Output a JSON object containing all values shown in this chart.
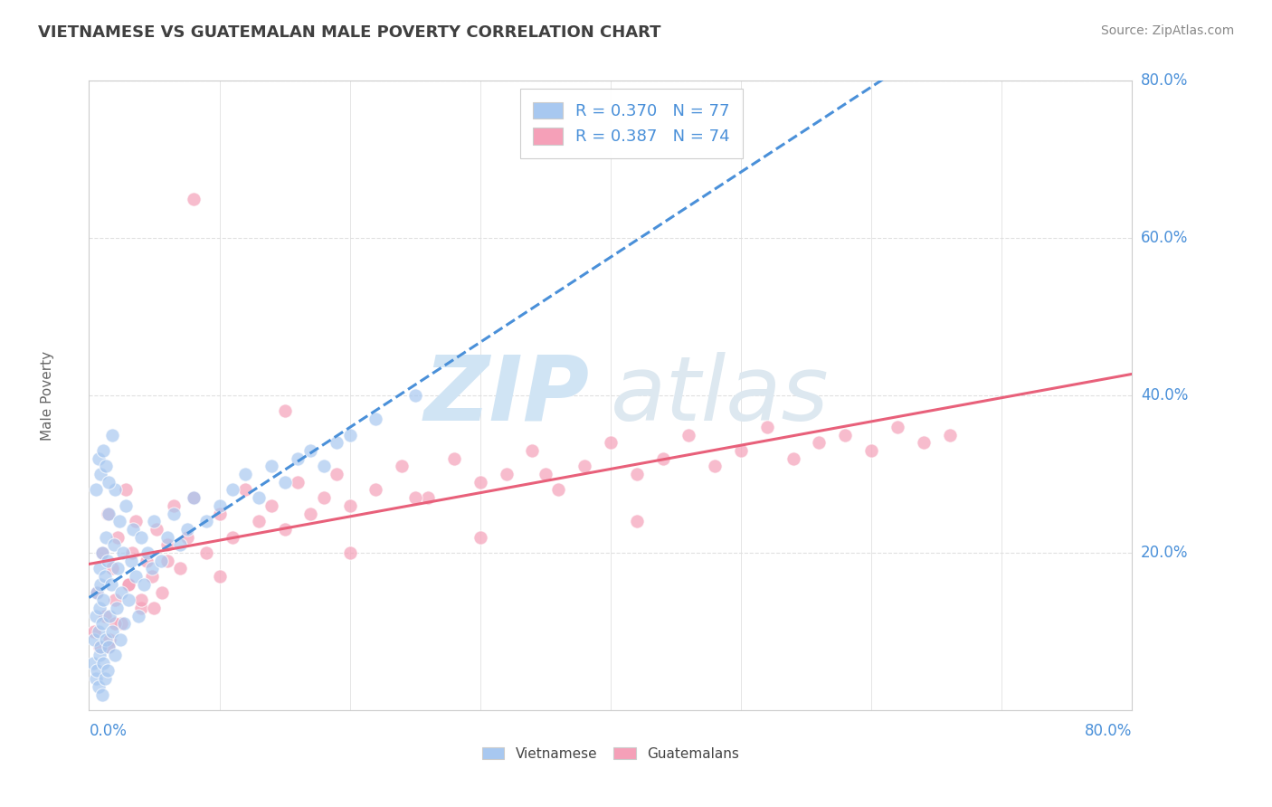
{
  "title": "VIETNAMESE VS GUATEMALAN MALE POVERTY CORRELATION CHART",
  "source": "Source: ZipAtlas.com",
  "ylabel": "Male Poverty",
  "xmin": 0.0,
  "xmax": 0.8,
  "ymin": 0.0,
  "ymax": 0.8,
  "right_yticks": [
    0.0,
    0.2,
    0.4,
    0.6,
    0.8
  ],
  "right_ytick_labels": [
    "",
    "20.0%",
    "40.0%",
    "60.0%",
    "80.0%"
  ],
  "legend_r1": "R = 0.370",
  "legend_n1": "N = 77",
  "legend_r2": "R = 0.387",
  "legend_n2": "N = 74",
  "label_viet": "Vietnamese",
  "label_guat": "Guatemalans",
  "viet_color": "#a8c8f0",
  "guat_color": "#f5a0b8",
  "viet_line_color": "#4a90d9",
  "guat_line_color": "#e8607a",
  "watermark_zip": "ZIP",
  "watermark_atlas": "atlas",
  "watermark_color": "#d0e4f4",
  "background_color": "#ffffff",
  "title_color": "#404040",
  "right_label_color": "#4a90d9",
  "grid_color": "#e0e0e0",
  "viet_x": [
    0.003,
    0.004,
    0.005,
    0.005,
    0.006,
    0.006,
    0.007,
    0.007,
    0.008,
    0.008,
    0.008,
    0.009,
    0.009,
    0.01,
    0.01,
    0.01,
    0.011,
    0.011,
    0.012,
    0.012,
    0.013,
    0.013,
    0.014,
    0.014,
    0.015,
    0.015,
    0.016,
    0.017,
    0.018,
    0.019,
    0.02,
    0.02,
    0.021,
    0.022,
    0.023,
    0.024,
    0.025,
    0.026,
    0.027,
    0.028,
    0.03,
    0.032,
    0.034,
    0.036,
    0.038,
    0.04,
    0.042,
    0.045,
    0.048,
    0.05,
    0.055,
    0.06,
    0.065,
    0.07,
    0.075,
    0.08,
    0.09,
    0.1,
    0.11,
    0.12,
    0.13,
    0.14,
    0.15,
    0.16,
    0.17,
    0.18,
    0.19,
    0.2,
    0.22,
    0.25,
    0.005,
    0.007,
    0.009,
    0.011,
    0.013,
    0.015,
    0.018
  ],
  "viet_y": [
    0.06,
    0.09,
    0.04,
    0.12,
    0.05,
    0.15,
    0.03,
    0.1,
    0.07,
    0.13,
    0.18,
    0.08,
    0.16,
    0.02,
    0.11,
    0.2,
    0.06,
    0.14,
    0.04,
    0.17,
    0.09,
    0.22,
    0.05,
    0.19,
    0.08,
    0.25,
    0.12,
    0.16,
    0.1,
    0.21,
    0.07,
    0.28,
    0.13,
    0.18,
    0.24,
    0.09,
    0.15,
    0.2,
    0.11,
    0.26,
    0.14,
    0.19,
    0.23,
    0.17,
    0.12,
    0.22,
    0.16,
    0.2,
    0.18,
    0.24,
    0.19,
    0.22,
    0.25,
    0.21,
    0.23,
    0.27,
    0.24,
    0.26,
    0.28,
    0.3,
    0.27,
    0.31,
    0.29,
    0.32,
    0.33,
    0.31,
    0.34,
    0.35,
    0.37,
    0.4,
    0.28,
    0.32,
    0.3,
    0.33,
    0.31,
    0.29,
    0.35
  ],
  "guat_x": [
    0.004,
    0.006,
    0.008,
    0.01,
    0.012,
    0.014,
    0.016,
    0.018,
    0.02,
    0.022,
    0.025,
    0.028,
    0.03,
    0.033,
    0.036,
    0.04,
    0.044,
    0.048,
    0.052,
    0.056,
    0.06,
    0.065,
    0.07,
    0.075,
    0.08,
    0.09,
    0.1,
    0.11,
    0.12,
    0.13,
    0.14,
    0.15,
    0.16,
    0.17,
    0.18,
    0.19,
    0.2,
    0.22,
    0.24,
    0.26,
    0.28,
    0.3,
    0.32,
    0.34,
    0.36,
    0.38,
    0.4,
    0.42,
    0.44,
    0.46,
    0.48,
    0.5,
    0.52,
    0.54,
    0.56,
    0.58,
    0.6,
    0.62,
    0.64,
    0.66,
    0.35,
    0.25,
    0.15,
    0.42,
    0.3,
    0.2,
    0.1,
    0.05,
    0.03,
    0.02,
    0.08,
    0.06,
    0.04,
    0.015
  ],
  "guat_y": [
    0.1,
    0.15,
    0.08,
    0.2,
    0.12,
    0.25,
    0.09,
    0.18,
    0.14,
    0.22,
    0.11,
    0.28,
    0.16,
    0.2,
    0.24,
    0.13,
    0.19,
    0.17,
    0.23,
    0.15,
    0.21,
    0.26,
    0.18,
    0.22,
    0.27,
    0.2,
    0.25,
    0.22,
    0.28,
    0.24,
    0.26,
    0.23,
    0.29,
    0.25,
    0.27,
    0.3,
    0.26,
    0.28,
    0.31,
    0.27,
    0.32,
    0.29,
    0.3,
    0.33,
    0.28,
    0.31,
    0.34,
    0.3,
    0.32,
    0.35,
    0.31,
    0.33,
    0.36,
    0.32,
    0.34,
    0.35,
    0.33,
    0.36,
    0.34,
    0.35,
    0.3,
    0.27,
    0.38,
    0.24,
    0.22,
    0.2,
    0.17,
    0.13,
    0.16,
    0.11,
    0.65,
    0.19,
    0.14,
    0.08
  ]
}
